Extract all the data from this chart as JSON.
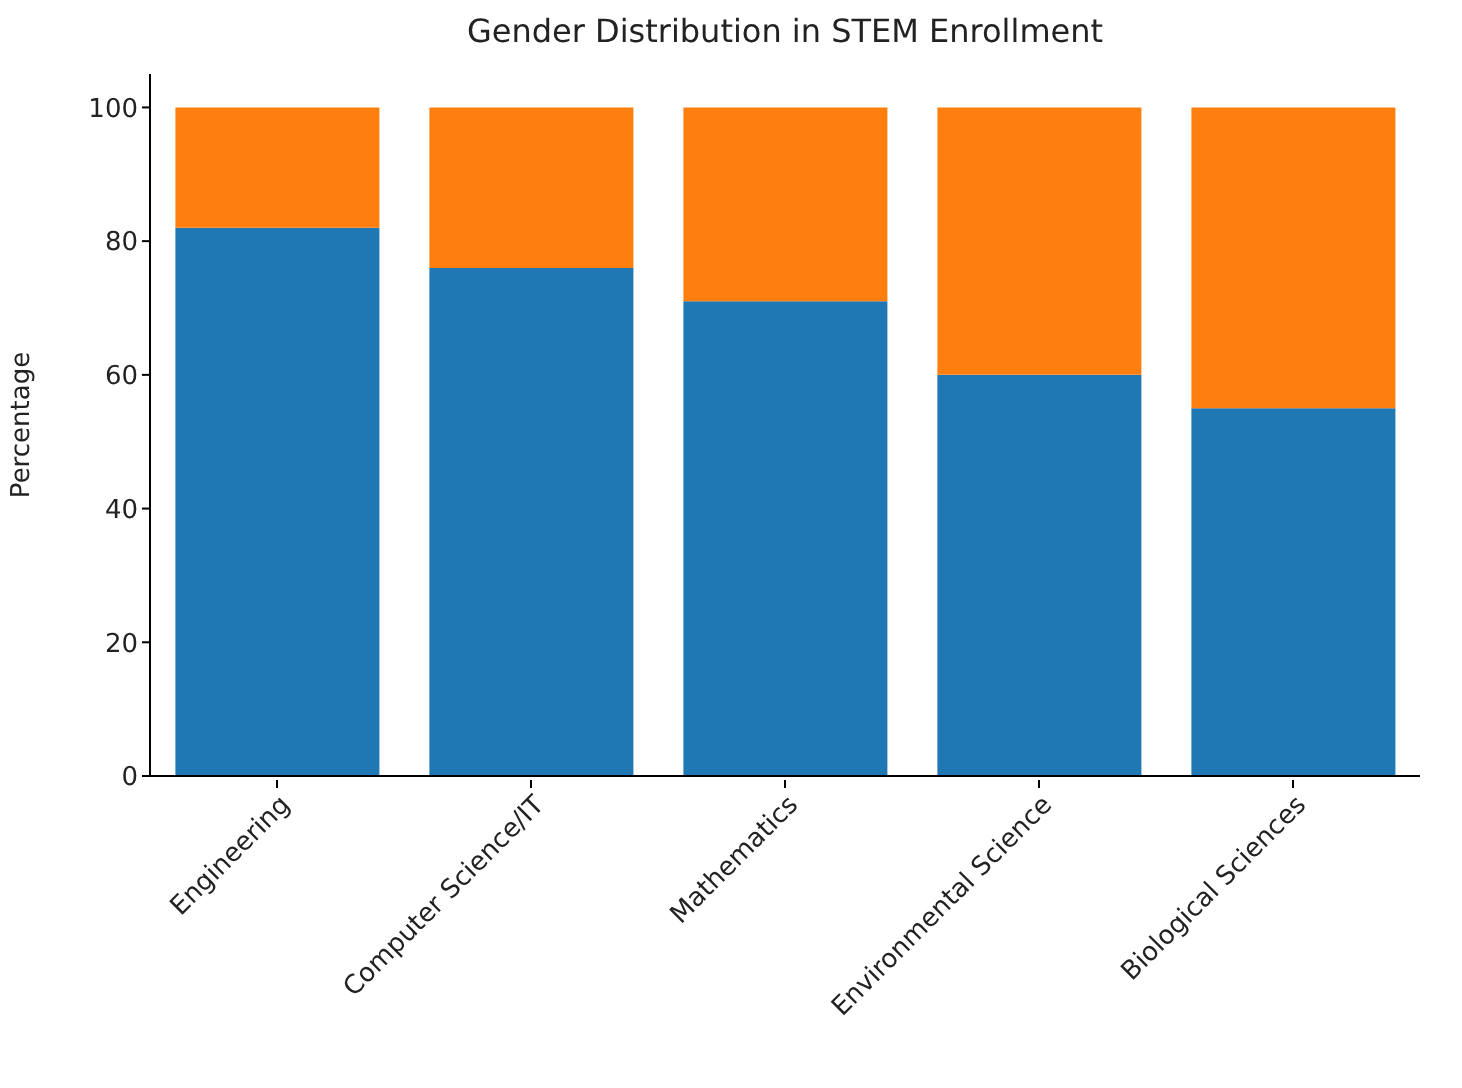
{
  "chart_data": {
    "type": "bar",
    "title": "Gender Distribution in STEM Enrollment",
    "ylabel": "Percentage",
    "stacked": true,
    "categories": [
      "Engineering",
      "Computer Science/IT",
      "Mathematics",
      "Environmental Science",
      "Biological Sciences"
    ],
    "series": [
      {
        "color": "#1f77b4",
        "values": [
          82,
          76,
          71,
          60,
          55
        ]
      },
      {
        "color": "#ff7f0e",
        "values": [
          18,
          24,
          29,
          40,
          45
        ]
      }
    ],
    "ylim": [
      0,
      105
    ],
    "yticks": [
      0,
      20,
      40,
      60,
      80,
      100
    ],
    "grid": false,
    "legend": false
  }
}
